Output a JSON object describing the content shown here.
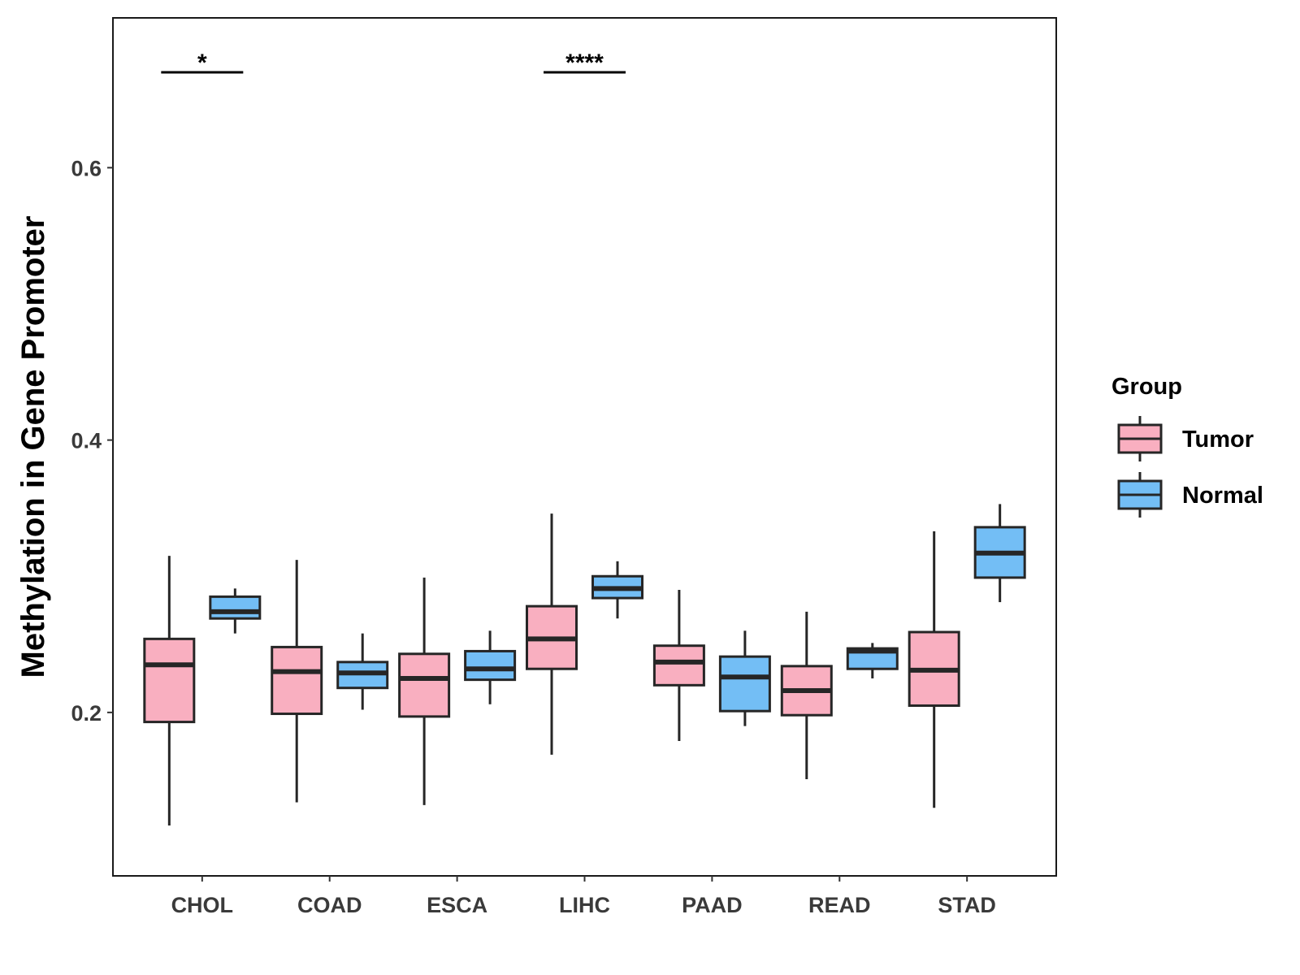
{
  "chart_data": {
    "type": "boxplot",
    "ylabel": "Methylation in Gene Promoter",
    "xlabel": "",
    "ylim": [
      0.08,
      0.71
    ],
    "yticks": [
      0.2,
      0.4,
      0.6
    ],
    "ytick_labels": [
      "0.2",
      "0.4",
      "0.6"
    ],
    "categories": [
      "CHOL",
      "COAD",
      "ESCA",
      "LIHC",
      "PAAD",
      "READ",
      "STAD"
    ],
    "legend": {
      "title": "Group",
      "placement": "right",
      "entries": [
        {
          "name": "Tumor",
          "color": "#F9AFC0"
        },
        {
          "name": "Normal",
          "color": "#73BEF5"
        }
      ]
    },
    "series": [
      {
        "name": "Tumor",
        "color": "#F9AFC0",
        "boxes": [
          {
            "category": "CHOL",
            "whisker_low": 0.117,
            "q1": 0.193,
            "median": 0.235,
            "q3": 0.254,
            "whisker_high": 0.315
          },
          {
            "category": "COAD",
            "whisker_low": 0.134,
            "q1": 0.199,
            "median": 0.23,
            "q3": 0.248,
            "whisker_high": 0.312
          },
          {
            "category": "ESCA",
            "whisker_low": 0.132,
            "q1": 0.197,
            "median": 0.225,
            "q3": 0.243,
            "whisker_high": 0.299
          },
          {
            "category": "LIHC",
            "whisker_low": 0.169,
            "q1": 0.232,
            "median": 0.254,
            "q3": 0.278,
            "whisker_high": 0.346
          },
          {
            "category": "PAAD",
            "whisker_low": 0.179,
            "q1": 0.22,
            "median": 0.237,
            "q3": 0.249,
            "whisker_high": 0.29
          },
          {
            "category": "READ",
            "whisker_low": 0.151,
            "q1": 0.198,
            "median": 0.216,
            "q3": 0.234,
            "whisker_high": 0.274
          },
          {
            "category": "STAD",
            "whisker_low": 0.13,
            "q1": 0.205,
            "median": 0.231,
            "q3": 0.259,
            "whisker_high": 0.333
          }
        ]
      },
      {
        "name": "Normal",
        "color": "#73BEF5",
        "boxes": [
          {
            "category": "CHOL",
            "whisker_low": 0.258,
            "q1": 0.269,
            "median": 0.274,
            "q3": 0.285,
            "whisker_high": 0.291
          },
          {
            "category": "COAD",
            "whisker_low": 0.202,
            "q1": 0.218,
            "median": 0.229,
            "q3": 0.237,
            "whisker_high": 0.258
          },
          {
            "category": "ESCA",
            "whisker_low": 0.206,
            "q1": 0.224,
            "median": 0.232,
            "q3": 0.245,
            "whisker_high": 0.26
          },
          {
            "category": "LIHC",
            "whisker_low": 0.269,
            "q1": 0.284,
            "median": 0.291,
            "q3": 0.3,
            "whisker_high": 0.311
          },
          {
            "category": "PAAD",
            "whisker_low": 0.19,
            "q1": 0.201,
            "median": 0.226,
            "q3": 0.241,
            "whisker_high": 0.26
          },
          {
            "category": "READ",
            "whisker_low": 0.225,
            "q1": 0.232,
            "median": 0.245,
            "q3": 0.247,
            "whisker_high": 0.251
          },
          {
            "category": "STAD",
            "whisker_low": 0.281,
            "q1": 0.299,
            "median": 0.317,
            "q3": 0.336,
            "whisker_high": 0.353
          }
        ]
      }
    ],
    "annotations": [
      {
        "category": "CHOL",
        "label": "*",
        "y": 0.67
      },
      {
        "category": "LIHC",
        "label": "****",
        "y": 0.67
      }
    ],
    "grid": false
  }
}
